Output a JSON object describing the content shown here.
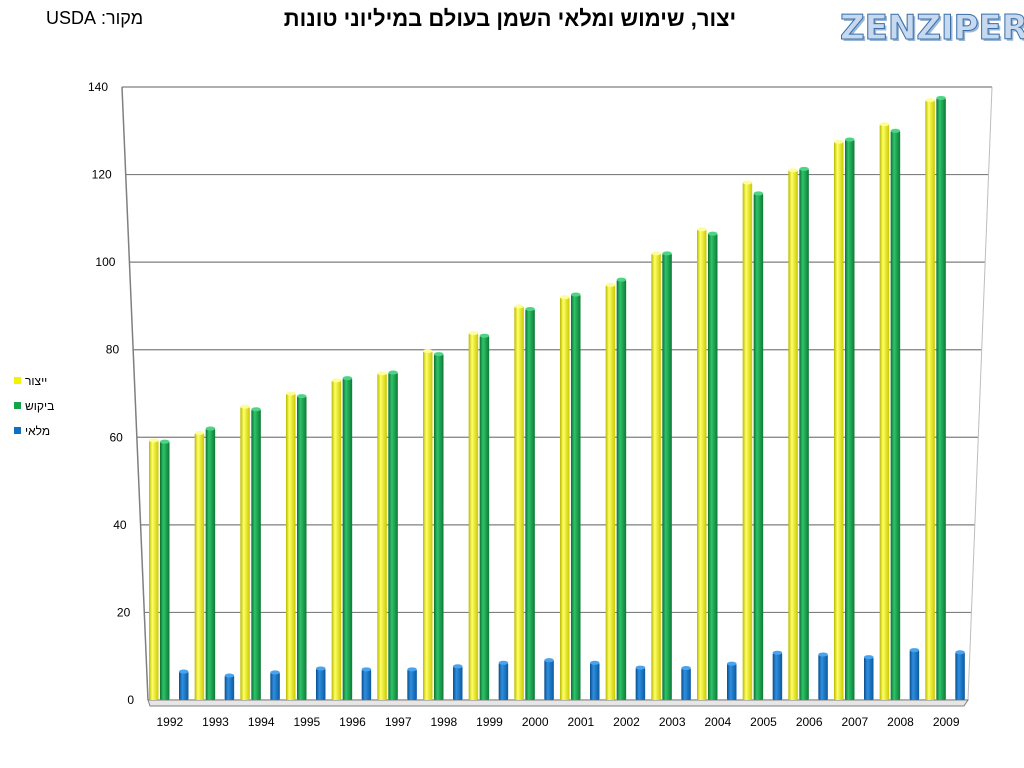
{
  "header": {
    "title": "יצור, שימוש ומלאי השמן בעולם במיליוני טונות",
    "source": "מקור: USDA",
    "logo_text": "ZENZIPER"
  },
  "colors": {
    "production": "#f3f300",
    "consumption": "#16a34a",
    "stock": "#0e6fc4",
    "grid": "#7f7f7f"
  },
  "chart_data": {
    "type": "bar",
    "title": "יצור, שימוש ומלאי השמן בעולם במיליוני טונות",
    "xlabel": "",
    "ylabel": "",
    "ylim": [
      0,
      140
    ],
    "yticks": [
      0,
      20,
      40,
      60,
      80,
      100,
      120,
      140
    ],
    "grid": true,
    "legend_position": "left",
    "categories": [
      "1992",
      "1993",
      "1994",
      "1995",
      "1996",
      "1997",
      "1998",
      "1999",
      "2000",
      "2001",
      "2002",
      "2003",
      "2004",
      "2005",
      "2006",
      "2007",
      "2008",
      "2009"
    ],
    "series": [
      {
        "name": "ייצור",
        "color": "#f3f300",
        "values": [
          59.3,
          61,
          67,
          70,
          73,
          74.6,
          79.7,
          83.8,
          89.9,
          92,
          94.8,
          102,
          107.5,
          118.2,
          121,
          127.5,
          131.5,
          137
        ]
      },
      {
        "name": "ביקוש",
        "color": "#16a34a",
        "values": [
          59,
          62,
          66.4,
          69.4,
          73.5,
          74.8,
          79,
          83.2,
          89.3,
          92.6,
          96,
          102,
          106.5,
          115.7,
          121.3,
          128,
          130,
          137.5
        ]
      },
      {
        "name": "מלאי",
        "color": "#0e6fc4",
        "values": [
          6.5,
          5.6,
          6.3,
          7.2,
          7,
          7,
          7.7,
          8.5,
          9.1,
          8.5,
          7.4,
          7.3,
          8.3,
          10.8,
          10.4,
          9.8,
          11.4,
          10.9
        ]
      }
    ]
  }
}
